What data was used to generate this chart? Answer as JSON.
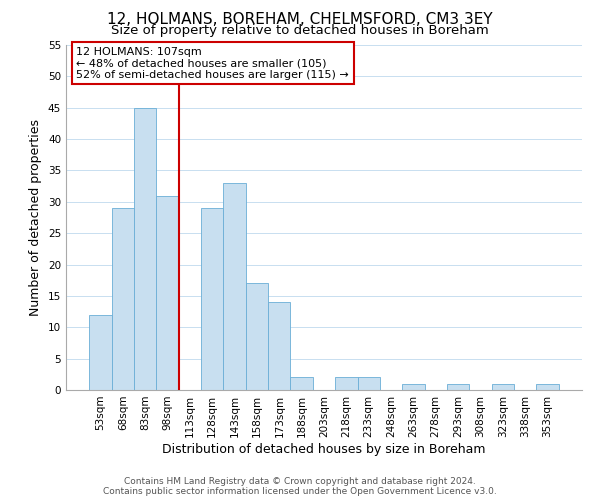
{
  "title": "12, HOLMANS, BOREHAM, CHELMSFORD, CM3 3EY",
  "subtitle": "Size of property relative to detached houses in Boreham",
  "xlabel": "Distribution of detached houses by size in Boreham",
  "ylabel": "Number of detached properties",
  "bar_color": "#c8dff0",
  "bar_edge_color": "#6aaed6",
  "bin_labels": [
    "53sqm",
    "68sqm",
    "83sqm",
    "98sqm",
    "113sqm",
    "128sqm",
    "143sqm",
    "158sqm",
    "173sqm",
    "188sqm",
    "203sqm",
    "218sqm",
    "233sqm",
    "248sqm",
    "263sqm",
    "278sqm",
    "293sqm",
    "308sqm",
    "323sqm",
    "338sqm",
    "353sqm"
  ],
  "bar_heights": [
    12,
    29,
    45,
    31,
    0,
    29,
    33,
    17,
    14,
    2,
    0,
    2,
    2,
    0,
    1,
    0,
    1,
    0,
    1,
    0,
    1
  ],
  "ylim": [
    0,
    55
  ],
  "yticks": [
    0,
    5,
    10,
    15,
    20,
    25,
    30,
    35,
    40,
    45,
    50,
    55
  ],
  "vline_color": "#cc0000",
  "annotation_box_text": "12 HOLMANS: 107sqm\n← 48% of detached houses are smaller (105)\n52% of semi-detached houses are larger (115) →",
  "footer_line1": "Contains HM Land Registry data © Crown copyright and database right 2024.",
  "footer_line2": "Contains public sector information licensed under the Open Government Licence v3.0.",
  "background_color": "#ffffff",
  "grid_color": "#c8dff0",
  "title_fontsize": 11,
  "subtitle_fontsize": 9.5,
  "axis_label_fontsize": 9,
  "tick_fontsize": 7.5,
  "footer_fontsize": 6.5,
  "annotation_fontsize": 8
}
